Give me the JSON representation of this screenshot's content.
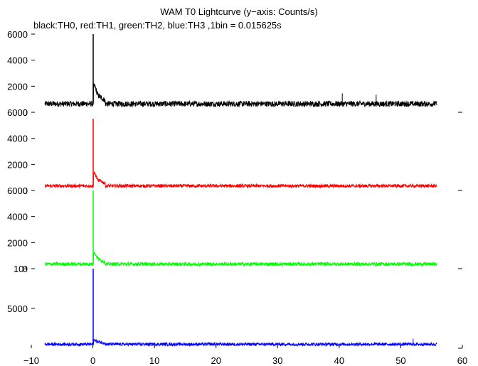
{
  "chart_data": {
    "type": "line",
    "title": "WAM T0 Lightcurve (y−axis: Counts/s)",
    "subtitle": "black:TH0, red:TH1, green:TH2, blue:TH3 ,1bin = 0.015625s",
    "x_ticks": [
      "−10",
      "0",
      "10",
      "20",
      "30",
      "40",
      "50",
      "60"
    ],
    "x_tick_values": [
      -10,
      0,
      10,
      20,
      30,
      40,
      50,
      60
    ],
    "xlim": [
      -10,
      60
    ],
    "panels": [
      {
        "series_color": "#000000",
        "ylim": [
          0,
          6000
        ],
        "y_ticks": [
          "0",
          "2000",
          "4000",
          "6000"
        ],
        "y_tick_values": [
          0,
          2000,
          4000,
          6000
        ],
        "x_range": [
          -7.8,
          55.8
        ],
        "baseline": 650,
        "noise": 220,
        "peak_x": 0.05,
        "peak": 6000,
        "decay": [
          {
            "x": 0.3,
            "y": 2000
          },
          {
            "x": 0.8,
            "y": 1300
          },
          {
            "x": 2.0,
            "y": 900
          }
        ],
        "outliers": [
          {
            "x": 40.5,
            "y": 1450
          },
          {
            "x": 46.0,
            "y": 1350
          }
        ]
      },
      {
        "series_color": "#ff0000",
        "ylim": [
          0,
          6000
        ],
        "y_ticks": [
          "0",
          "2000",
          "4000",
          "6000"
        ],
        "y_tick_values": [
          0,
          2000,
          4000,
          6000
        ],
        "x_range": [
          -7.8,
          55.8
        ],
        "baseline": 350,
        "noise": 130,
        "peak_x": 0.05,
        "peak": 5500,
        "decay": [
          {
            "x": 0.3,
            "y": 1300
          },
          {
            "x": 0.8,
            "y": 800
          },
          {
            "x": 2.0,
            "y": 550
          }
        ],
        "outliers": []
      },
      {
        "series_color": "#00ff00",
        "ylim": [
          0,
          6000
        ],
        "y_ticks": [
          "0",
          "2000",
          "4000",
          "6000"
        ],
        "y_tick_values": [
          0,
          2000,
          4000,
          6000
        ],
        "x_range": [
          -7.8,
          55.8
        ],
        "baseline": 350,
        "noise": 140,
        "peak_x": 0.05,
        "peak": 6000,
        "decay": [
          {
            "x": 0.3,
            "y": 1200
          },
          {
            "x": 0.8,
            "y": 750
          },
          {
            "x": 2.0,
            "y": 500
          }
        ],
        "outliers": []
      },
      {
        "series_color": "#0000ff",
        "ylim": [
          0,
          10000
        ],
        "y_ticks": [
          "5000",
          "10⁴"
        ],
        "y_tick_values": [
          5000,
          10000
        ],
        "x_range": [
          -7.8,
          55.8
        ],
        "baseline": 500,
        "noise": 200,
        "peak_x": 0.05,
        "peak": 10000,
        "decay": [
          {
            "x": 0.3,
            "y": 1000
          },
          {
            "x": 0.8,
            "y": 800
          },
          {
            "x": 2.0,
            "y": 650
          }
        ],
        "outliers": [
          {
            "x": 52.0,
            "y": 1200
          }
        ]
      }
    ],
    "grid": false,
    "legend": "none"
  }
}
